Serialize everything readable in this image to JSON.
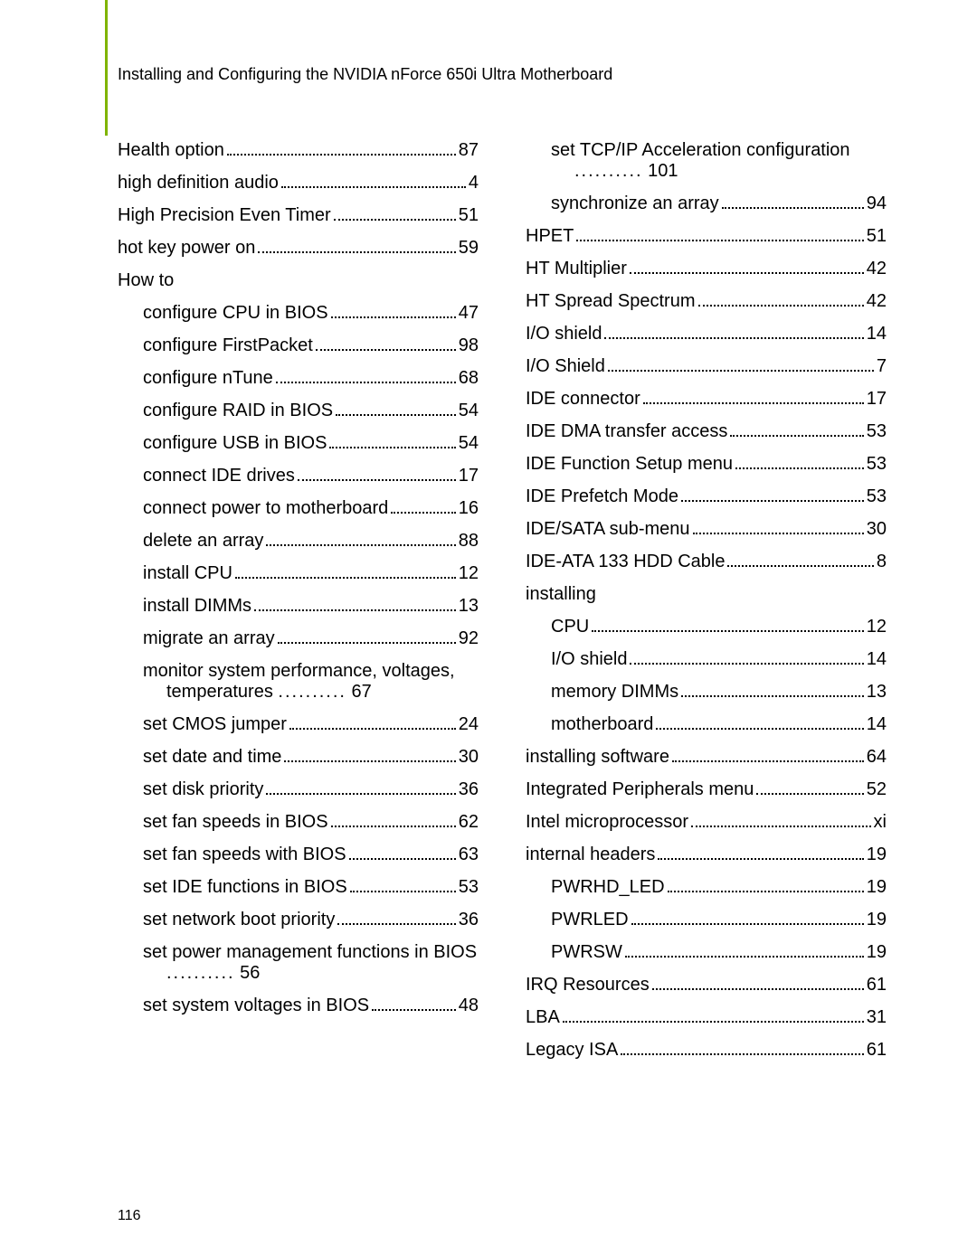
{
  "running_head": "Installing and Configuring the NVIDIA nForce 650i Ultra Motherboard",
  "footer_page": "116",
  "left_col": [
    {
      "type": "entry",
      "indent": 0,
      "label": "Health option",
      "page": "87"
    },
    {
      "type": "entry",
      "indent": 0,
      "label": "high definition audio",
      "page": "4"
    },
    {
      "type": "entry",
      "indent": 0,
      "label": "High Precision Even Timer",
      "page": "51"
    },
    {
      "type": "entry",
      "indent": 0,
      "label": "hot key power on",
      "page": "59"
    },
    {
      "type": "plain",
      "indent": 0,
      "label": "How to"
    },
    {
      "type": "entry",
      "indent": 1,
      "label": "configure CPU in BIOS",
      "page": "47"
    },
    {
      "type": "entry",
      "indent": 1,
      "label": "configure FirstPacket",
      "page": "98"
    },
    {
      "type": "entry",
      "indent": 1,
      "label": "configure nTune",
      "page": "68"
    },
    {
      "type": "entry",
      "indent": 1,
      "label": "configure RAID in BIOS",
      "page": "54"
    },
    {
      "type": "entry",
      "indent": 1,
      "label": "configure USB in BIOS",
      "page": "54"
    },
    {
      "type": "entry",
      "indent": 1,
      "label": "connect IDE drives",
      "page": "17"
    },
    {
      "type": "entry",
      "indent": 1,
      "label": "connect power to motherboard",
      "page": "16"
    },
    {
      "type": "entry",
      "indent": 1,
      "label": "delete an array",
      "page": "88"
    },
    {
      "type": "entry",
      "indent": 1,
      "label": "install CPU",
      "page": "12"
    },
    {
      "type": "entry",
      "indent": 1,
      "label": "install DIMMs",
      "page": "13"
    },
    {
      "type": "entry",
      "indent": 1,
      "label": "migrate an array",
      "page": "92"
    },
    {
      "type": "hang",
      "indent": 1,
      "label": "monitor system performance, voltages, temperatures",
      "page": "67"
    },
    {
      "type": "entry",
      "indent": 1,
      "label": "set CMOS jumper",
      "page": "24"
    },
    {
      "type": "entry",
      "indent": 1,
      "label": "set date and time",
      "page": "30"
    },
    {
      "type": "entry",
      "indent": 1,
      "label": "set disk priority",
      "page": "36"
    },
    {
      "type": "entry",
      "indent": 1,
      "label": "set fan speeds in BIOS",
      "page": "62"
    },
    {
      "type": "entry",
      "indent": 1,
      "label": "set fan speeds with BIOS",
      "page": "63"
    },
    {
      "type": "entry",
      "indent": 1,
      "label": "set IDE functions in BIOS",
      "page": "53"
    },
    {
      "type": "entry",
      "indent": 1,
      "label": "set network boot priority",
      "page": "36"
    },
    {
      "type": "hang",
      "indent": 1,
      "label": "set power management functions in BIOS",
      "page": "56"
    },
    {
      "type": "entry",
      "indent": 1,
      "label": "set system voltages in BIOS",
      "page": "48"
    }
  ],
  "right_col": [
    {
      "type": "hang",
      "indent": 1,
      "label": "set TCP/IP Acceleration configuration",
      "page": "101"
    },
    {
      "type": "entry",
      "indent": 1,
      "label": "synchronize an array",
      "page": "94"
    },
    {
      "type": "entry",
      "indent": 0,
      "label": "HPET",
      "page": "51"
    },
    {
      "type": "entry",
      "indent": 0,
      "label": "HT Multiplier",
      "page": "42"
    },
    {
      "type": "entry",
      "indent": 0,
      "label": "HT Spread Spectrum",
      "page": "42"
    },
    {
      "type": "entry",
      "indent": 0,
      "label": "I/O shield",
      "page": "14"
    },
    {
      "type": "entry",
      "indent": 0,
      "label": "I/O Shield",
      "page": "7"
    },
    {
      "type": "entry",
      "indent": 0,
      "label": "IDE connector",
      "page": "17"
    },
    {
      "type": "entry",
      "indent": 0,
      "label": "IDE DMA transfer access",
      "page": "53"
    },
    {
      "type": "entry",
      "indent": 0,
      "label": "IDE Function Setup menu",
      "page": "53"
    },
    {
      "type": "entry",
      "indent": 0,
      "label": "IDE Prefetch Mode",
      "page": "53"
    },
    {
      "type": "entry",
      "indent": 0,
      "label": "IDE/SATA sub-menu",
      "page": "30"
    },
    {
      "type": "entry",
      "indent": 0,
      "label": "IDE-ATA 133 HDD Cable",
      "page": "8"
    },
    {
      "type": "plain",
      "indent": 0,
      "label": "installing"
    },
    {
      "type": "entry",
      "indent": 1,
      "label": "CPU",
      "page": "12"
    },
    {
      "type": "entry",
      "indent": 1,
      "label": "I/O shield",
      "page": "14"
    },
    {
      "type": "entry",
      "indent": 1,
      "label": "memory DIMMs",
      "page": "13"
    },
    {
      "type": "entry",
      "indent": 1,
      "label": "motherboard",
      "page": "14"
    },
    {
      "type": "entry",
      "indent": 0,
      "label": "installing software",
      "page": "64"
    },
    {
      "type": "entry",
      "indent": 0,
      "label": "Integrated Peripherals menu",
      "page": "52"
    },
    {
      "type": "entry",
      "indent": 0,
      "label": "Intel microprocessor",
      "page": "xi"
    },
    {
      "type": "entry",
      "indent": 0,
      "label": "internal headers",
      "page": "19"
    },
    {
      "type": "entry",
      "indent": 1,
      "label": "PWRHD_LED",
      "page": "19"
    },
    {
      "type": "entry",
      "indent": 1,
      "label": "PWRLED",
      "page": "19"
    },
    {
      "type": "entry",
      "indent": 1,
      "label": "PWRSW",
      "page": "19"
    },
    {
      "type": "entry",
      "indent": 0,
      "label": "IRQ Resources",
      "page": "61"
    },
    {
      "type": "entry",
      "indent": 0,
      "label": "LBA",
      "page": "31"
    },
    {
      "type": "entry",
      "indent": 0,
      "label": "Legacy ISA",
      "page": "61"
    }
  ]
}
